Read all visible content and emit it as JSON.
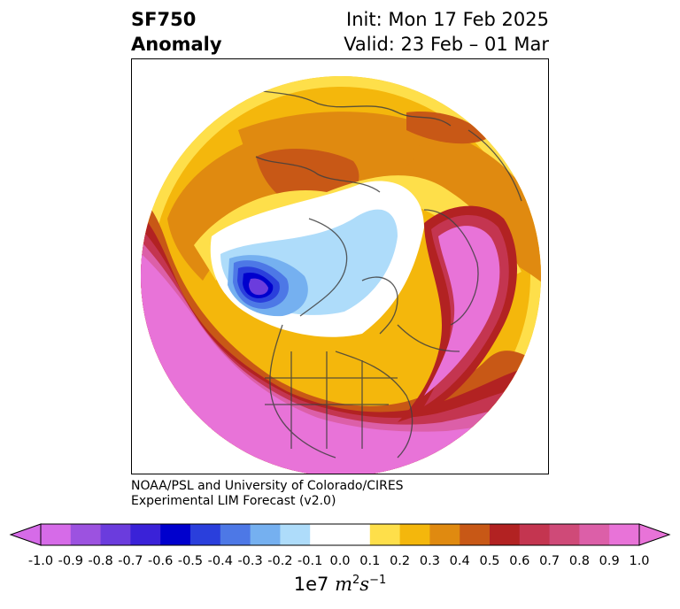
{
  "title": {
    "line1": "SF750",
    "line2": "Anomaly"
  },
  "forecast": {
    "init": "Init: Mon 17 Feb 2025",
    "valid": "Valid: 23 Feb – 01 Mar"
  },
  "credit": {
    "line1": "NOAA/PSL and University of Colorado/CIRES",
    "line2": "Experimental LIM Forecast (v2.0)"
  },
  "colorbar": {
    "ticks": [
      "-1.0",
      "-0.9",
      "-0.8",
      "-0.7",
      "-0.6",
      "-0.5",
      "-0.4",
      "-0.3",
      "-0.2",
      "-0.1",
      "0.0",
      "0.1",
      "0.2",
      "0.3",
      "0.4",
      "0.5",
      "0.6",
      "0.7",
      "0.8",
      "0.9",
      "1.0"
    ],
    "colors": [
      "#d66be8",
      "#9c52e0",
      "#6b3cdd",
      "#3a22d8",
      "#0000cd",
      "#2a3fdc",
      "#4d78e6",
      "#75b0f0",
      "#aedcfa",
      "#ffffff",
      "#ffffff",
      "#fedf4a",
      "#f4b70c",
      "#e08a10",
      "#c85816",
      "#b22222",
      "#c43550",
      "#cf4a78",
      "#dc5fa8",
      "#e873d8"
    ],
    "label_prefix": "1e7 ",
    "label_var": "m",
    "label_exp1": "2",
    "label_var2": "s",
    "label_exp2": "−1"
  },
  "map_colors": {
    "ocean_bg": "#ffffff",
    "coast": "#404040"
  }
}
